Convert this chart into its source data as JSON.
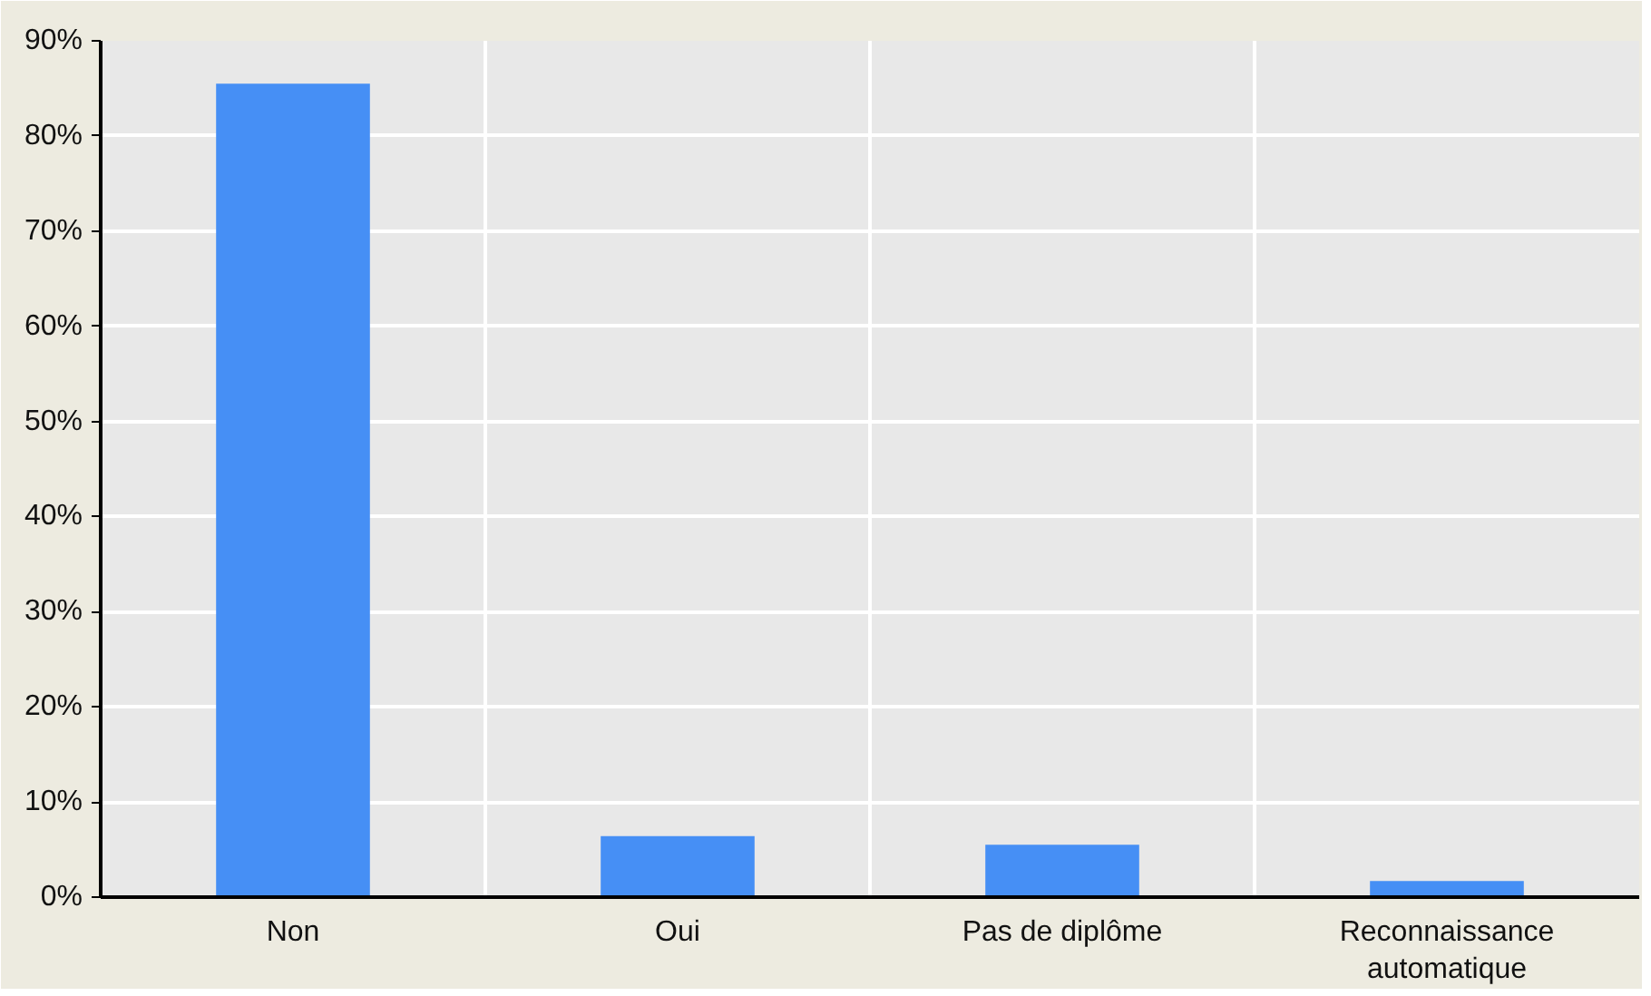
{
  "chart_data": {
    "type": "bar",
    "categories": [
      "Non",
      "Oui",
      "Pas de diplôme",
      "Reconnaissance automatique"
    ],
    "values": [
      85.5,
      6.4,
      5.5,
      1.7
    ],
    "color": "#468ff5",
    "ylim": [
      0,
      90
    ],
    "yticks": [
      {
        "value": 0,
        "label": "0%"
      },
      {
        "value": 10,
        "label": "10%"
      },
      {
        "value": 20,
        "label": "20%"
      },
      {
        "value": 30,
        "label": "30%"
      },
      {
        "value": 40,
        "label": "40%"
      },
      {
        "value": 50,
        "label": "50%"
      },
      {
        "value": 60,
        "label": "60%"
      },
      {
        "value": 70,
        "label": "70%"
      },
      {
        "value": 80,
        "label": "80%"
      },
      {
        "value": 90,
        "label": "90%"
      }
    ],
    "grid": true
  }
}
